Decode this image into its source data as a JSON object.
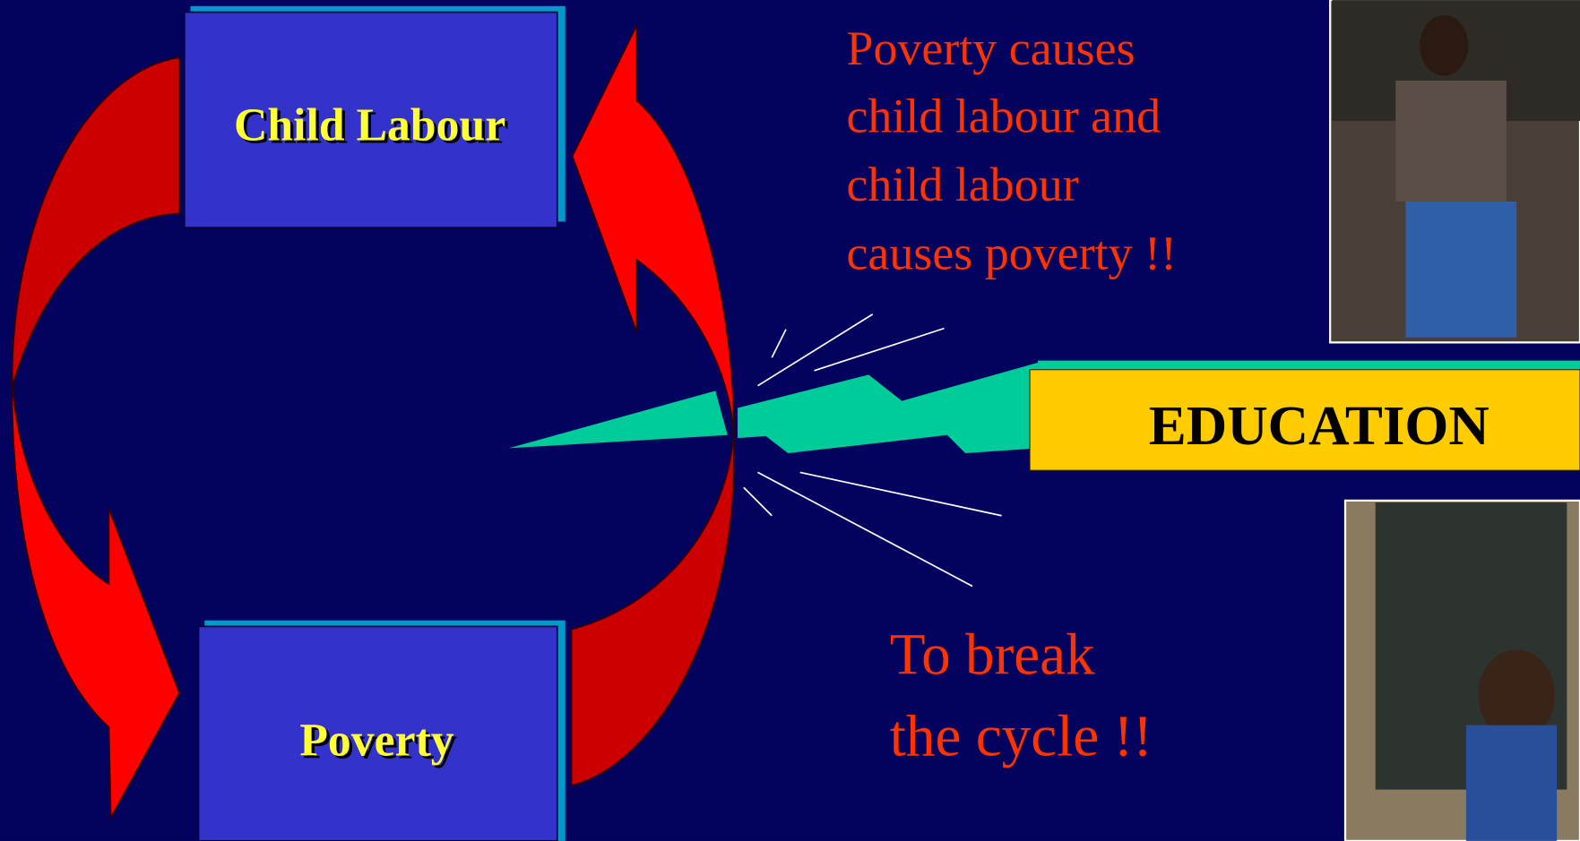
{
  "boxes": {
    "top": "Child Labour",
    "bottom": "Poverty"
  },
  "education": "EDUCATION",
  "statement": [
    "Poverty causes",
    "child labour and",
    "child labour",
    "causes poverty !!"
  ],
  "call": [
    "To break",
    "the cycle !!"
  ]
}
